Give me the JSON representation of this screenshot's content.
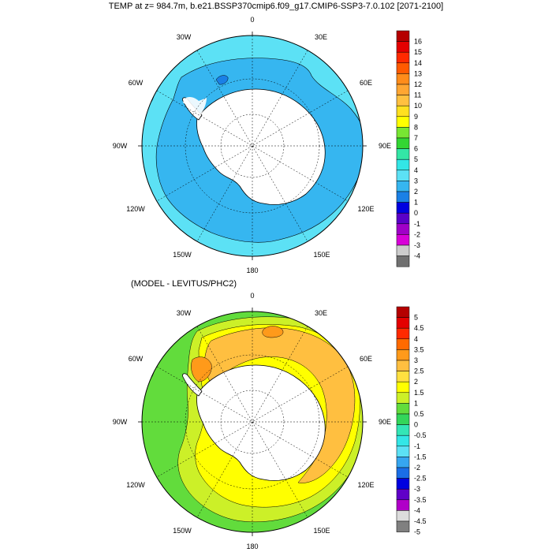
{
  "titles": {
    "main": "TEMP at z= 984.7m, b.e21.BSSP370cmip6.f09_g17.CMIP6-SSP3-7.0.102 [2071-2100]",
    "diff": "(MODEL - LEVITUS/PHC2)"
  },
  "longitude_labels": {
    "top": "0",
    "e30": "30E",
    "e60": "60E",
    "e90": "90E",
    "e120": "120E",
    "e150": "150E",
    "bottom": "180",
    "w150": "150W",
    "w120": "120W",
    "w90": "90W",
    "w60": "60W",
    "w30": "30W"
  },
  "colorbar_top": {
    "labels": [
      "16",
      "15",
      "14",
      "13",
      "12",
      "11",
      "10",
      "9",
      "8",
      "7",
      "6",
      "5",
      "4",
      "3",
      "2",
      "1",
      "0",
      "-1",
      "-2",
      "-3",
      "-4"
    ],
    "colors": [
      "#b50000",
      "#e40000",
      "#ff2a00",
      "#ff5a00",
      "#ff8c1a",
      "#ffa632",
      "#ffc040",
      "#ffe020",
      "#ffff00",
      "#78e632",
      "#33d633",
      "#33e6a6",
      "#33e6e6",
      "#5ce1f5",
      "#36b6f0",
      "#1a80e6",
      "#0000e0",
      "#5a00c8",
      "#a000c8",
      "#d800d8",
      "#cccccc",
      "#707070"
    ]
  },
  "colorbar_bottom": {
    "labels": [
      "5",
      "4.5",
      "4",
      "3.5",
      "3",
      "2.5",
      "2",
      "1.5",
      "1",
      "0.5",
      "0",
      "-0.5",
      "-1",
      "-1.5",
      "-2",
      "-2.5",
      "-3",
      "-3.5",
      "-4",
      "-4.5",
      "-5"
    ],
    "colors": [
      "#b50000",
      "#e40000",
      "#ff2a00",
      "#ff6a00",
      "#ff9a1a",
      "#ffbf40",
      "#ffe040",
      "#ffff00",
      "#ccf028",
      "#62dc3c",
      "#33d65a",
      "#33e6b6",
      "#33e6e6",
      "#5ce1f5",
      "#36a6f0",
      "#1a6ee6",
      "#0000e0",
      "#6000c8",
      "#b000c8",
      "#dcdcdc",
      "#808080"
    ]
  },
  "map_colors": {
    "ocean_top_main": "#5ce1f5",
    "ocean_top_inner": "#36b6f0",
    "diff_orange": "#ffbf40",
    "diff_yellow": "#ffff00",
    "diff_green": "#62dc3c",
    "diff_lightgreen": "#ccf028",
    "land": "#ffffff"
  }
}
